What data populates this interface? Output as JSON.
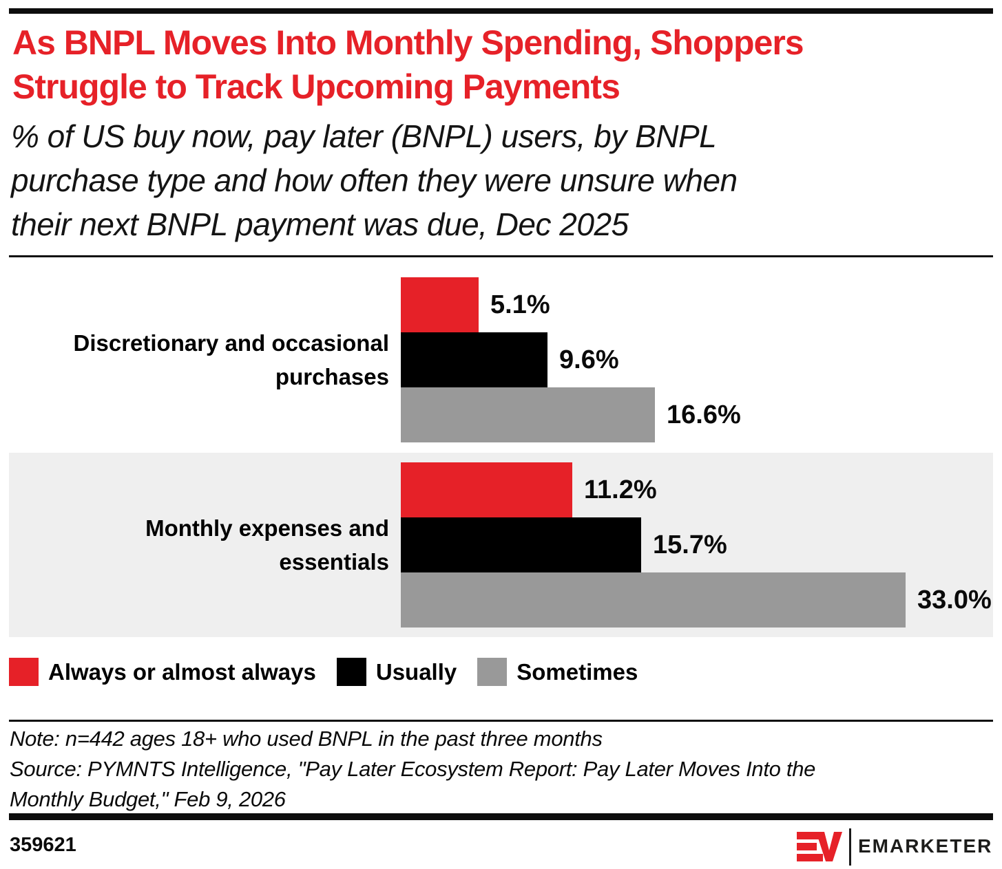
{
  "chart_data": {
    "type": "bar",
    "orientation": "horizontal",
    "title": "As BNPL Moves Into Monthly Spending, Shoppers Struggle to Track Upcoming Payments",
    "title_lines": [
      "As BNPL Moves Into Monthly Spending, Shoppers",
      "Struggle to Track Upcoming Payments"
    ],
    "subtitle": "% of US buy now, pay later (BNPL) users, by BNPL purchase type and how often they were unsure when their next BNPL payment was due, Dec 2025",
    "subtitle_lines": [
      "% of US buy now, pay later (BNPL) users, by BNPL",
      "purchase type and how often they were unsure when",
      "their next BNPL payment was due, Dec 2025"
    ],
    "categories": [
      "Discretionary and occasional purchases",
      "Monthly expenses and essentials"
    ],
    "category_label_lines": [
      [
        "Discretionary and occasional",
        "purchases"
      ],
      [
        "Monthly expenses and",
        "essentials"
      ]
    ],
    "series": [
      {
        "name": "Always or almost always",
        "color": "#E62128",
        "values": [
          5.1,
          11.2
        ]
      },
      {
        "name": "Usually",
        "color": "#000000",
        "values": [
          9.6,
          15.7
        ]
      },
      {
        "name": "Sometimes",
        "color": "#999999",
        "values": [
          16.6,
          33.0
        ]
      }
    ],
    "value_labels": [
      [
        "5.1%",
        "11.2%"
      ],
      [
        "9.6%",
        "15.7%"
      ],
      [
        "16.6%",
        "33.0%"
      ]
    ],
    "value_suffix": "%",
    "xlim": [
      0,
      36
    ],
    "grid": false,
    "legend_position": "bottom",
    "row_highlight_color": "#EFEFEF",
    "highlighted_category": "Monthly expenses and essentials"
  },
  "footnotes": {
    "lines": [
      "Note: n=442 ages 18+ who used BNPL in the past three months",
      "Source: PYMNTS Intelligence, \"Pay Later Ecosystem Report: Pay Later Moves Into the",
      "Monthly Budget,\" Feb 9, 2026"
    ]
  },
  "footer": {
    "chart_id": "359621",
    "brand_wordmark": "EMARKETER",
    "brand_red": "#E62128"
  }
}
